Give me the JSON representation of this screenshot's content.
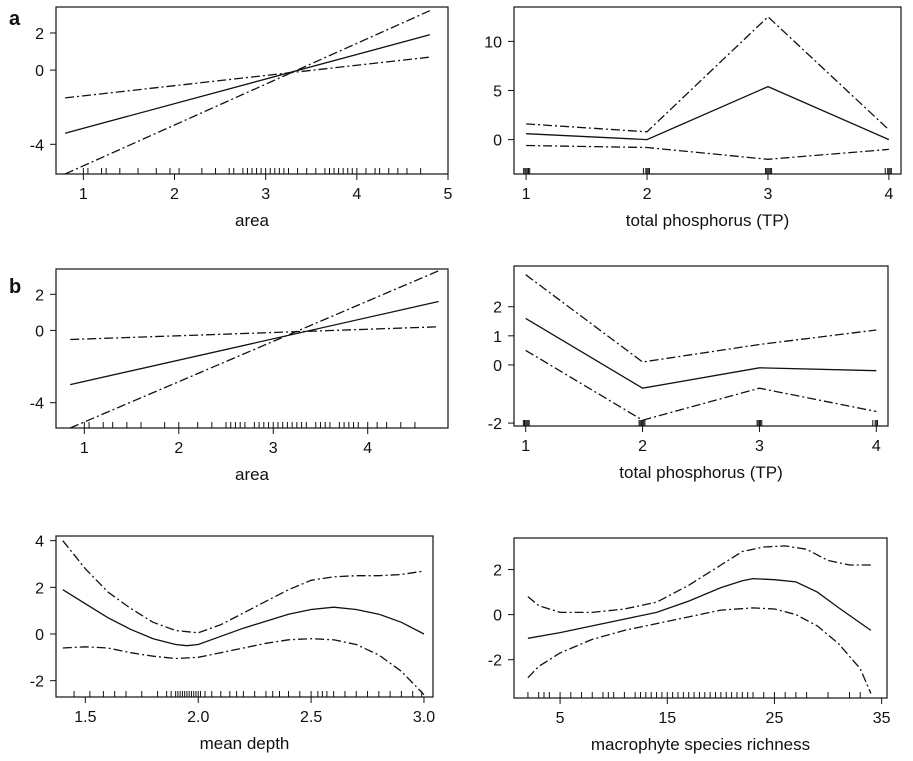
{
  "figure": {
    "panel_letters": [
      "a",
      "b"
    ]
  },
  "chart_data": [
    {
      "id": "a-area",
      "type": "line",
      "xlabel": "area",
      "ylabel": "",
      "xlim": [
        0.7,
        5.0
      ],
      "ylim": [
        -5.6,
        3.4
      ],
      "xticks": [
        1,
        2,
        3,
        4,
        5
      ],
      "yticks": [
        -4,
        0,
        2
      ],
      "series": [
        {
          "style": "solid",
          "x": [
            0.8,
            4.8
          ],
          "y": [
            -3.4,
            1.9
          ]
        },
        {
          "style": "dashdot",
          "x": [
            0.8,
            4.8
          ],
          "y": [
            -5.6,
            3.2
          ]
        },
        {
          "style": "dashdot",
          "x": [
            0.8,
            4.8
          ],
          "y": [
            -1.5,
            0.7
          ]
        }
      ],
      "rug": [
        1.0,
        1.05,
        1.2,
        1.25,
        1.4,
        1.6,
        1.8,
        1.95,
        2.05,
        2.3,
        2.45,
        2.6,
        2.65,
        2.75,
        2.8,
        2.85,
        2.9,
        2.95,
        3.0,
        3.05,
        3.1,
        3.15,
        3.2,
        3.25,
        3.35,
        3.45,
        3.55,
        3.65,
        3.7,
        3.75,
        3.8,
        3.85,
        3.9,
        3.95,
        4.0,
        4.1,
        4.2,
        4.25,
        4.35,
        4.45,
        4.55,
        4.7
      ]
    },
    {
      "id": "a-tp",
      "type": "line",
      "xlabel": "total phosphorus (TP)",
      "ylabel": "",
      "xlim": [
        0.9,
        4.1
      ],
      "ylim": [
        -3.5,
        13.5
      ],
      "xticks": [
        1,
        2,
        3,
        4
      ],
      "yticks": [
        0,
        5,
        10
      ],
      "series": [
        {
          "style": "solid",
          "x": [
            1,
            2,
            3,
            4
          ],
          "y": [
            0.6,
            0.0,
            5.4,
            0.0
          ]
        },
        {
          "style": "dashdot",
          "x": [
            1,
            2,
            3,
            4
          ],
          "y": [
            1.6,
            0.8,
            12.5,
            1.0
          ]
        },
        {
          "style": "dashdot",
          "x": [
            1,
            2,
            3,
            4
          ],
          "y": [
            -0.6,
            -0.8,
            -2.0,
            -1.0
          ]
        }
      ],
      "rug": [
        0.98,
        0.99,
        1.0,
        1.01,
        1.02,
        1.03,
        1.97,
        1.99,
        2.0,
        2.01,
        2.02,
        2.98,
        2.99,
        3.0,
        3.01,
        3.02,
        3.03,
        3.97,
        3.99,
        4.0,
        4.01,
        4.02
      ]
    },
    {
      "id": "b-area",
      "type": "line",
      "xlabel": "area",
      "ylabel": "",
      "xlim": [
        0.7,
        4.85
      ],
      "ylim": [
        -5.4,
        3.4
      ],
      "xticks": [
        1,
        2,
        3,
        4
      ],
      "yticks": [
        -4,
        0,
        2
      ],
      "series": [
        {
          "style": "solid",
          "x": [
            0.85,
            4.75
          ],
          "y": [
            -3.0,
            1.6
          ]
        },
        {
          "style": "dashdot",
          "x": [
            0.85,
            4.75
          ],
          "y": [
            -5.4,
            3.3
          ]
        },
        {
          "style": "dashdot",
          "x": [
            0.85,
            4.75
          ],
          "y": [
            -0.5,
            0.2
          ]
        }
      ],
      "rug": [
        1.0,
        1.05,
        1.2,
        1.3,
        1.45,
        1.6,
        1.85,
        2.0,
        2.2,
        2.35,
        2.5,
        2.55,
        2.6,
        2.65,
        2.7,
        2.8,
        2.85,
        2.9,
        2.95,
        3.0,
        3.05,
        3.1,
        3.15,
        3.2,
        3.25,
        3.3,
        3.35,
        3.45,
        3.5,
        3.55,
        3.6,
        3.7,
        3.75,
        3.8,
        3.85,
        3.9,
        4.0,
        4.1,
        4.2,
        4.35,
        4.5
      ]
    },
    {
      "id": "b-tp",
      "type": "line",
      "xlabel": "total phosphorus (TP)",
      "ylabel": "",
      "xlim": [
        0.9,
        4.1
      ],
      "ylim": [
        -2.1,
        3.4
      ],
      "xticks": [
        1,
        2,
        3,
        4
      ],
      "yticks": [
        -2,
        0,
        1,
        2
      ],
      "series": [
        {
          "style": "solid",
          "x": [
            1,
            2,
            3,
            4
          ],
          "y": [
            1.6,
            -0.8,
            -0.1,
            -0.2
          ]
        },
        {
          "style": "dashdot",
          "x": [
            1,
            2,
            3,
            4
          ],
          "y": [
            3.1,
            0.1,
            0.7,
            1.2
          ]
        },
        {
          "style": "dashdot",
          "x": [
            1,
            2,
            3,
            4
          ],
          "y": [
            0.5,
            -1.9,
            -0.8,
            -1.6
          ]
        }
      ],
      "rug": [
        0.98,
        0.99,
        1.0,
        1.01,
        1.02,
        1.03,
        1.97,
        1.98,
        1.99,
        2.0,
        2.01,
        2.02,
        2.98,
        2.99,
        3.0,
        3.01,
        3.02,
        3.97,
        3.99,
        4.0,
        4.01
      ]
    },
    {
      "id": "b-depth",
      "type": "line",
      "xlabel": "mean depth",
      "ylabel": "",
      "xlim": [
        1.37,
        3.04
      ],
      "ylim": [
        -2.7,
        4.2
      ],
      "xticks": [
        1.5,
        2.0,
        2.5,
        3.0
      ],
      "xtick_labels": [
        "1.5",
        "2.0",
        "2.5",
        "3.0"
      ],
      "yticks": [
        -2,
        0,
        2,
        4
      ],
      "series": [
        {
          "style": "solid",
          "x": [
            1.4,
            1.5,
            1.6,
            1.7,
            1.8,
            1.9,
            1.95,
            2.0,
            2.1,
            2.2,
            2.3,
            2.4,
            2.5,
            2.6,
            2.7,
            2.8,
            2.9,
            3.0
          ],
          "y": [
            1.9,
            1.3,
            0.7,
            0.2,
            -0.2,
            -0.45,
            -0.5,
            -0.45,
            -0.1,
            0.25,
            0.55,
            0.85,
            1.05,
            1.15,
            1.05,
            0.85,
            0.5,
            0.0
          ]
        },
        {
          "style": "dashdot",
          "x": [
            1.4,
            1.5,
            1.6,
            1.7,
            1.8,
            1.9,
            2.0,
            2.1,
            2.2,
            2.3,
            2.4,
            2.5,
            2.6,
            2.7,
            2.8,
            2.9,
            3.0
          ],
          "y": [
            4.0,
            2.8,
            1.8,
            1.1,
            0.5,
            0.15,
            0.05,
            0.4,
            0.9,
            1.4,
            1.9,
            2.3,
            2.45,
            2.5,
            2.5,
            2.55,
            2.7
          ]
        },
        {
          "style": "dashdot",
          "x": [
            1.4,
            1.5,
            1.6,
            1.7,
            1.8,
            1.9,
            2.0,
            2.1,
            2.2,
            2.3,
            2.4,
            2.5,
            2.6,
            2.7,
            2.8,
            2.9,
            3.0
          ],
          "y": [
            -0.6,
            -0.55,
            -0.6,
            -0.8,
            -0.95,
            -1.05,
            -1.0,
            -0.8,
            -0.6,
            -0.4,
            -0.25,
            -0.2,
            -0.25,
            -0.45,
            -0.9,
            -1.6,
            -2.6
          ]
        }
      ],
      "rug": [
        1.45,
        1.52,
        1.58,
        1.63,
        1.68,
        1.75,
        1.82,
        1.86,
        1.88,
        1.9,
        1.91,
        1.92,
        1.93,
        1.94,
        1.95,
        1.96,
        1.97,
        1.98,
        1.99,
        2.0,
        2.01,
        2.03,
        2.06,
        2.1,
        2.14,
        2.17,
        2.2,
        2.25,
        2.3,
        2.33,
        2.36,
        2.4,
        2.45,
        2.5,
        2.53,
        2.55,
        2.57,
        2.6,
        2.65,
        2.7,
        2.75,
        2.8,
        2.85,
        2.9,
        2.95,
        2.99
      ]
    },
    {
      "id": "b-richness",
      "type": "line",
      "xlabel": "macrophyte species richness",
      "ylabel": "",
      "xlim": [
        0.7,
        35.5
      ],
      "ylim": [
        -3.7,
        3.4
      ],
      "xticks": [
        5,
        15,
        25,
        35
      ],
      "yticks": [
        -2,
        0,
        2
      ],
      "series": [
        {
          "style": "solid",
          "x": [
            2,
            5,
            8,
            11,
            14,
            17,
            20,
            22,
            23,
            25,
            27,
            29,
            31,
            34
          ],
          "y": [
            -1.05,
            -0.8,
            -0.5,
            -0.2,
            0.1,
            0.6,
            1.2,
            1.5,
            1.6,
            1.55,
            1.45,
            1.0,
            0.3,
            -0.7
          ]
        },
        {
          "style": "dashdot",
          "x": [
            2,
            3,
            5,
            8,
            11,
            14,
            17,
            20,
            22,
            24,
            26,
            28,
            30,
            32,
            34
          ],
          "y": [
            0.8,
            0.4,
            0.1,
            0.1,
            0.25,
            0.55,
            1.3,
            2.2,
            2.8,
            3.0,
            3.05,
            2.9,
            2.4,
            2.2,
            2.2
          ]
        },
        {
          "style": "dashdot",
          "x": [
            2,
            3,
            5,
            8,
            11,
            14,
            17,
            20,
            23,
            25,
            27,
            29,
            31,
            33,
            34
          ],
          "y": [
            -2.8,
            -2.3,
            -1.7,
            -1.1,
            -0.7,
            -0.4,
            -0.1,
            0.2,
            0.3,
            0.25,
            0.0,
            -0.5,
            -1.3,
            -2.4,
            -3.5
          ]
        }
      ],
      "rug": [
        2,
        3,
        3.5,
        4,
        5,
        6,
        7,
        8,
        9,
        9.5,
        10,
        11,
        12,
        12.5,
        13,
        13.5,
        14,
        14.5,
        15,
        15.5,
        16,
        16.5,
        17,
        17.5,
        18,
        18.5,
        19,
        19.5,
        20,
        20.5,
        21,
        21.5,
        22,
        22.5,
        23,
        24,
        25,
        26,
        27,
        28,
        30,
        32,
        33
      ]
    }
  ]
}
